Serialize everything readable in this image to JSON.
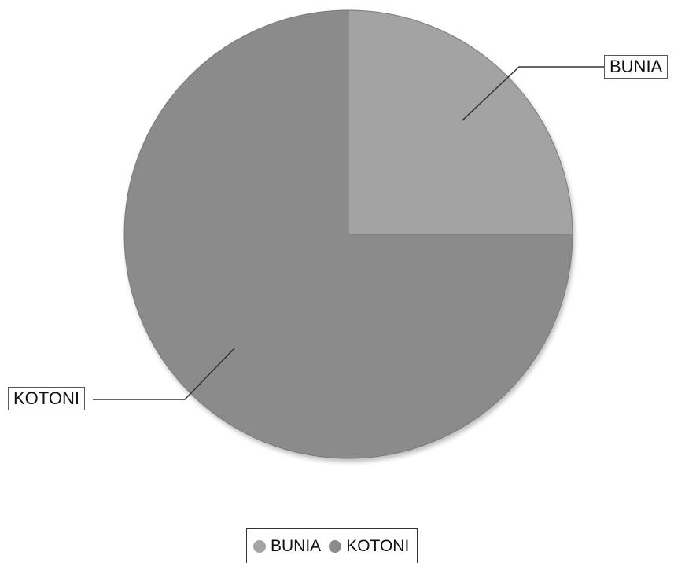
{
  "chart_data": {
    "type": "pie",
    "slices": [
      {
        "name": "BUNIA",
        "value": 25,
        "color": "#a3a3a3"
      },
      {
        "name": "KOTONI",
        "value": 75,
        "color": "#8b8b8b"
      }
    ],
    "start_angle_deg": 0,
    "direction": "clockwise",
    "legend_position": "bottom"
  },
  "legend": {
    "items": [
      {
        "label": "BUNIA",
        "color": "#a3a3a3"
      },
      {
        "label": "KOTONI",
        "color": "#8b8b8b"
      }
    ]
  }
}
